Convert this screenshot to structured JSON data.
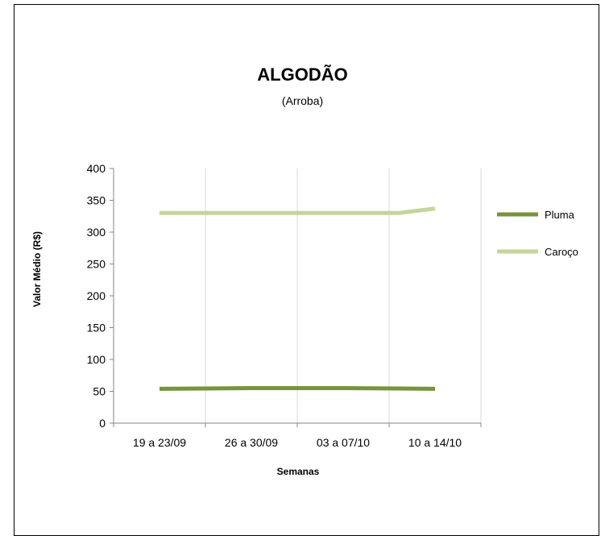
{
  "chart_data": {
    "type": "line",
    "title": "ALGODÃO",
    "subtitle": "(Arroba)",
    "xlabel": "Semanas",
    "ylabel": "Valor Médio (R$)",
    "categories": [
      "19 a 23/09",
      "26 a 30/09",
      "03 a 07/10",
      "10 a 14/10"
    ],
    "ylim": [
      0,
      400
    ],
    "yticks": [
      0,
      50,
      100,
      150,
      200,
      250,
      300,
      350,
      400
    ],
    "grid": "vertical",
    "legend_position": "right",
    "series": [
      {
        "name": "Pluma",
        "color": "#77933c",
        "x": [
          0,
          1,
          2,
          2.6,
          3
        ],
        "values": [
          54,
          55,
          55,
          54.5,
          54
        ]
      },
      {
        "name": "Caroço",
        "color": "#c3d69b",
        "x": [
          0,
          1,
          2,
          2.6,
          3
        ],
        "values": [
          330,
          330,
          330,
          330,
          337
        ]
      }
    ]
  }
}
